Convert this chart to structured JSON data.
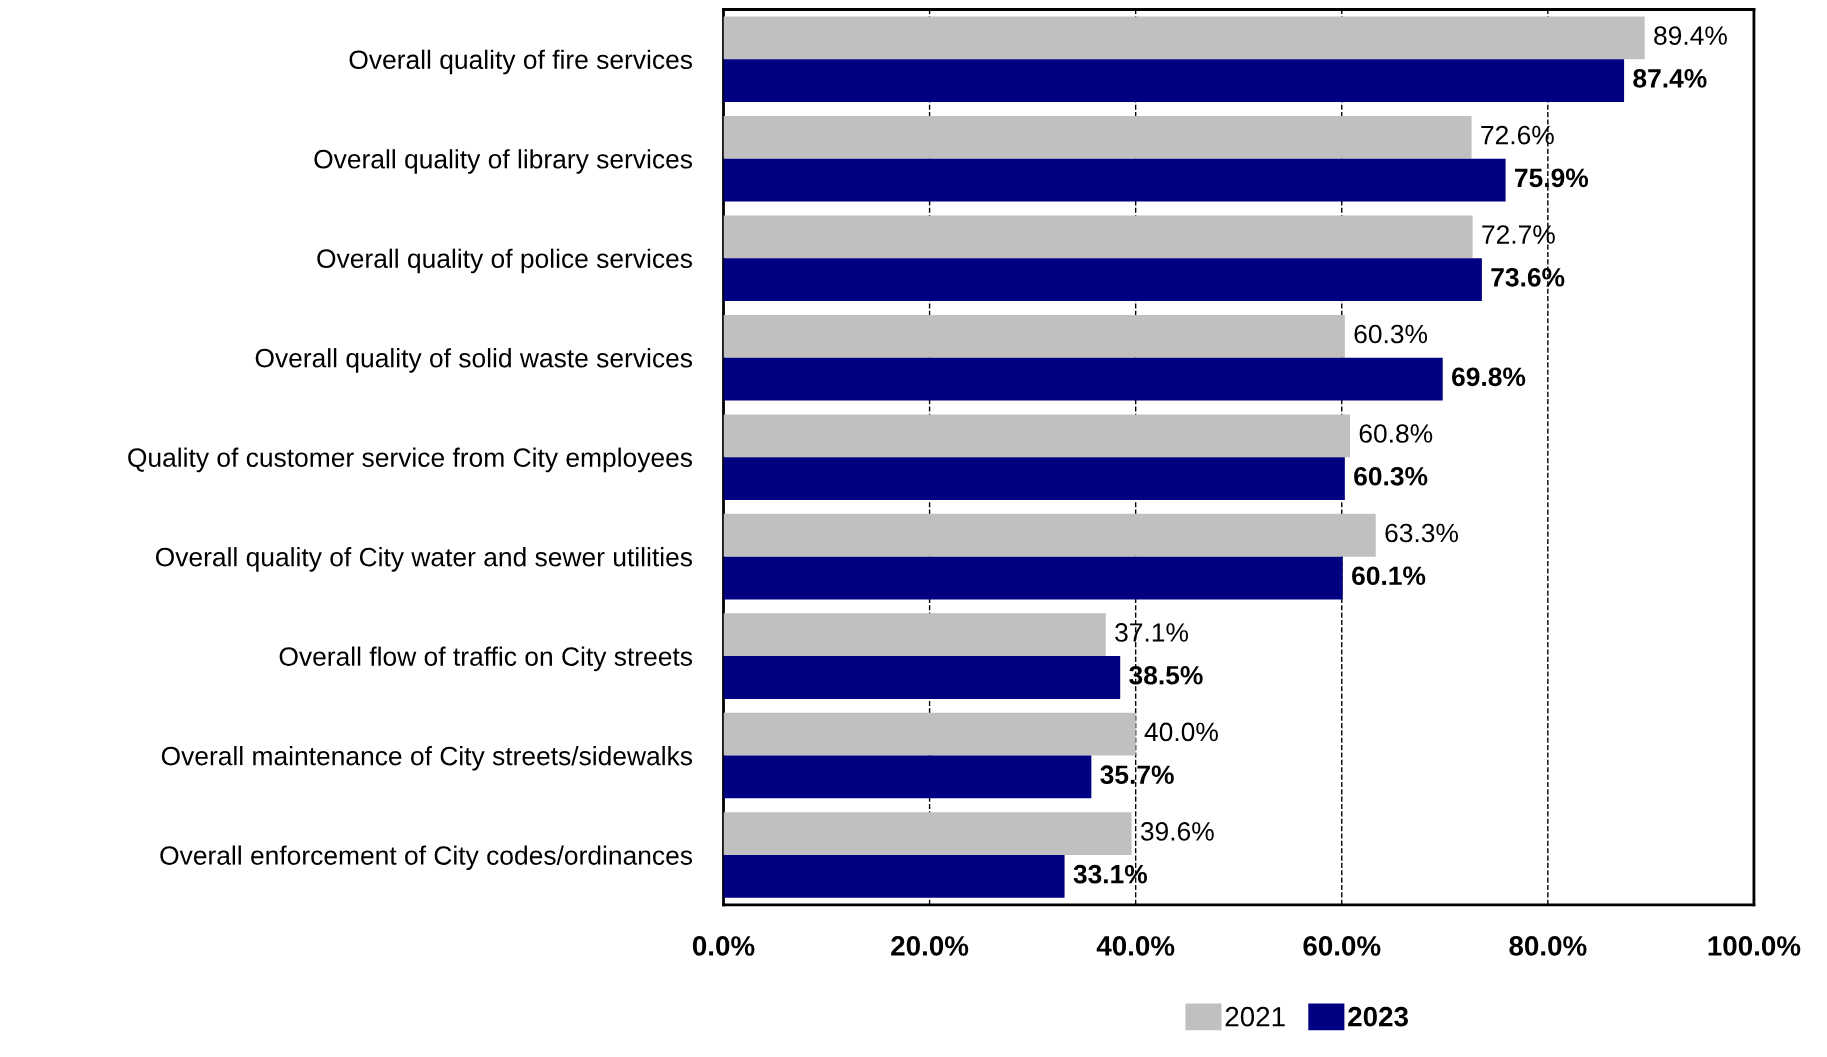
{
  "chart_data": {
    "type": "bar",
    "orientation": "horizontal",
    "categories": [
      "Overall quality of fire services",
      "Overall quality of library services",
      "Overall quality of police services",
      "Overall quality of solid waste services",
      "Quality of customer service from City employees",
      "Overall quality of City water and sewer utilities",
      "Overall flow of traffic on City streets",
      "Overall maintenance of City streets/sidewalks",
      "Overall enforcement of City codes/ordinances"
    ],
    "series": [
      {
        "name": "2021",
        "color": "#c0c0c0",
        "values": [
          89.4,
          72.6,
          72.7,
          60.3,
          60.8,
          63.3,
          37.1,
          40.0,
          39.6
        ],
        "value_labels": [
          "89.4%",
          "72.6%",
          "72.7%",
          "60.3%",
          "60.8%",
          "63.3%",
          "37.1%",
          "40.0%",
          "39.6%"
        ]
      },
      {
        "name": "2023",
        "color": "#000080",
        "values": [
          87.4,
          75.9,
          73.6,
          69.8,
          60.3,
          60.1,
          38.5,
          35.7,
          33.1
        ],
        "value_labels": [
          "87.4%",
          "75.9%",
          "73.6%",
          "69.8%",
          "60.3%",
          "60.1%",
          "38.5%",
          "35.7%",
          "33.1%"
        ]
      }
    ],
    "xlim": [
      0,
      100
    ],
    "xticks": [
      {
        "value": 0,
        "label": "0.0%"
      },
      {
        "value": 20,
        "label": "20.0%"
      },
      {
        "value": 40,
        "label": "40.0%"
      },
      {
        "value": 60,
        "label": "60.0%"
      },
      {
        "value": 80,
        "label": "80.0%"
      },
      {
        "value": 100,
        "label": "100.0%"
      }
    ],
    "grid": "x",
    "legend": "bottom"
  }
}
